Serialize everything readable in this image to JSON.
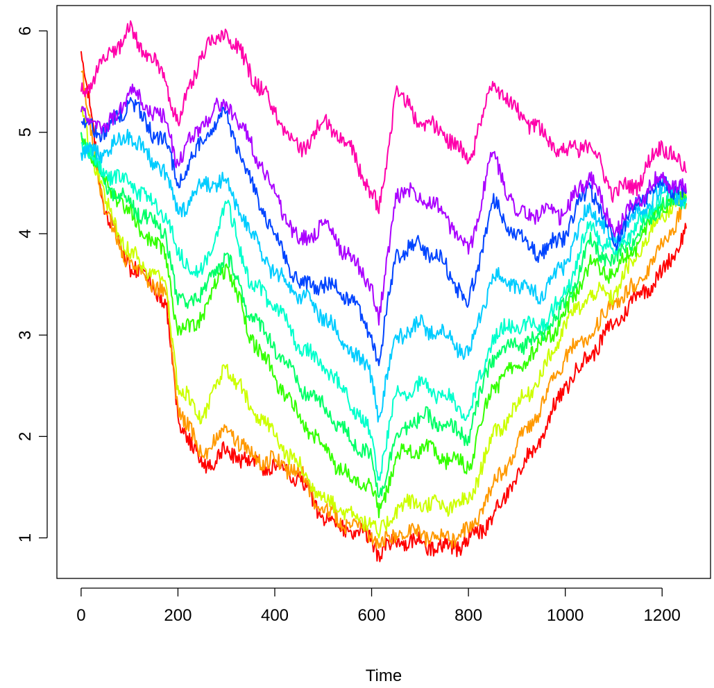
{
  "chart_data": {
    "type": "line",
    "title": "",
    "xlabel": "Time",
    "ylabel": "",
    "xlim": [
      -50,
      1300
    ],
    "ylim": [
      0.6,
      6.25
    ],
    "xticks": [
      0,
      200,
      400,
      600,
      800,
      1000,
      1200
    ],
    "yticks": [
      1,
      2,
      3,
      4,
      5,
      6
    ],
    "grid": false,
    "legend": "none",
    "x": [
      0,
      50,
      100,
      150,
      175,
      200,
      250,
      300,
      350,
      400,
      450,
      500,
      550,
      600,
      615,
      650,
      700,
      750,
      800,
      850,
      900,
      950,
      1000,
      1050,
      1100,
      1150,
      1200,
      1250
    ],
    "series": [
      {
        "color": "#ff0000",
        "values": [
          5.8,
          4.2,
          3.7,
          3.5,
          3.3,
          2.2,
          1.7,
          1.85,
          1.75,
          1.7,
          1.6,
          1.2,
          1.1,
          1.0,
          0.85,
          0.95,
          0.95,
          0.9,
          0.95,
          1.2,
          1.6,
          2.0,
          2.5,
          2.8,
          3.1,
          3.4,
          3.6,
          4.05
        ]
      },
      {
        "color": "#ff9900",
        "values": [
          5.6,
          4.2,
          3.7,
          3.5,
          3.4,
          2.3,
          1.8,
          2.1,
          1.8,
          1.75,
          1.65,
          1.25,
          1.15,
          1.05,
          0.9,
          1.05,
          1.05,
          1.0,
          1.05,
          1.5,
          1.9,
          2.3,
          2.8,
          3.0,
          3.3,
          3.5,
          3.9,
          4.3
        ]
      },
      {
        "color": "#ccff00",
        "values": [
          5.2,
          4.3,
          3.8,
          3.6,
          3.5,
          2.5,
          2.2,
          2.7,
          2.3,
          2.0,
          1.7,
          1.4,
          1.25,
          1.15,
          1.0,
          1.3,
          1.35,
          1.3,
          1.35,
          2.0,
          2.3,
          2.6,
          3.1,
          3.4,
          3.4,
          3.8,
          4.2,
          4.35
        ]
      },
      {
        "color": "#33ff00",
        "values": [
          5.0,
          4.5,
          4.2,
          3.9,
          3.8,
          3.0,
          3.2,
          3.7,
          3.0,
          2.6,
          2.2,
          1.9,
          1.6,
          1.5,
          1.2,
          1.8,
          1.9,
          1.8,
          1.7,
          2.5,
          2.7,
          2.9,
          3.2,
          3.7,
          3.6,
          3.9,
          4.3,
          4.35
        ]
      },
      {
        "color": "#00ff66",
        "values": [
          5.0,
          4.5,
          4.3,
          4.1,
          4.0,
          3.3,
          3.4,
          3.8,
          3.2,
          2.9,
          2.5,
          2.3,
          2.0,
          1.8,
          1.4,
          2.0,
          2.2,
          2.1,
          2.0,
          2.8,
          2.9,
          3.0,
          3.3,
          3.9,
          3.7,
          4.0,
          4.3,
          4.35
        ]
      },
      {
        "color": "#00ffcc",
        "values": [
          4.9,
          4.6,
          4.5,
          4.3,
          4.2,
          3.8,
          3.6,
          4.3,
          3.5,
          3.3,
          2.9,
          2.7,
          2.4,
          2.0,
          1.6,
          2.4,
          2.5,
          2.4,
          2.2,
          3.0,
          3.1,
          3.1,
          3.4,
          4.1,
          3.8,
          4.1,
          4.4,
          4.35
        ]
      },
      {
        "color": "#00ccff",
        "values": [
          4.8,
          4.8,
          5.0,
          4.7,
          4.6,
          4.2,
          4.5,
          4.5,
          4.0,
          3.6,
          3.4,
          3.2,
          2.9,
          2.6,
          2.2,
          3.0,
          3.1,
          3.0,
          2.8,
          3.6,
          3.5,
          3.4,
          3.7,
          4.3,
          3.9,
          4.2,
          4.45,
          4.35
        ]
      },
      {
        "color": "#0044ff",
        "values": [
          5.1,
          5.0,
          5.3,
          5.0,
          4.9,
          4.5,
          4.9,
          5.2,
          4.5,
          4.0,
          3.5,
          3.5,
          3.4,
          3.0,
          2.7,
          3.8,
          3.9,
          3.7,
          3.3,
          4.3,
          4.0,
          3.8,
          4.0,
          4.5,
          3.9,
          4.3,
          4.5,
          4.4
        ]
      },
      {
        "color": "#aa00ff",
        "values": [
          5.2,
          5.0,
          5.4,
          5.2,
          5.1,
          4.7,
          5.1,
          5.3,
          4.9,
          4.4,
          3.9,
          4.1,
          3.8,
          3.5,
          3.1,
          4.4,
          4.4,
          4.2,
          3.8,
          4.8,
          4.2,
          4.2,
          4.2,
          4.6,
          4.0,
          4.35,
          4.55,
          4.4
        ]
      },
      {
        "color": "#ff00aa",
        "values": [
          5.4,
          5.7,
          6.0,
          5.7,
          5.5,
          5.1,
          5.8,
          6.0,
          5.6,
          5.2,
          4.8,
          5.1,
          4.9,
          4.4,
          4.2,
          5.4,
          5.1,
          5.0,
          4.7,
          5.5,
          5.2,
          5.0,
          4.8,
          4.9,
          4.4,
          4.5,
          4.9,
          4.6
        ]
      }
    ]
  }
}
